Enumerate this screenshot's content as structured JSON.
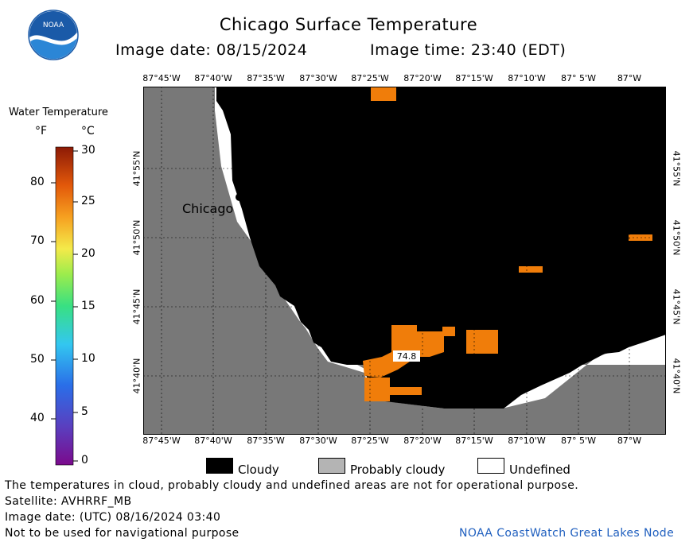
{
  "header": {
    "title": "Chicago Surface Temperature",
    "image_date": "Image date: 08/15/2024",
    "image_time": "Image time: 23:40 (EDT)"
  },
  "logo": {
    "text": "NOAA"
  },
  "colorbar": {
    "title": "Water Temperature",
    "unit_f": "°F",
    "unit_c": "°C",
    "f_ticks": [
      "80",
      "70",
      "60",
      "50",
      "40"
    ],
    "c_ticks": [
      "30",
      "25",
      "20",
      "15",
      "10",
      "5",
      "0"
    ]
  },
  "map": {
    "lon_labels": [
      "87°45'W",
      "87°40'W",
      "87°35'W",
      "87°30'W",
      "87°25'W",
      "87°20'W",
      "87°15'W",
      "87°10'W",
      "87° 5'W",
      "87°W"
    ],
    "lat_labels": [
      "41°55'N",
      "41°50'N",
      "41°45'N",
      "41°40'N"
    ],
    "city_label": "Chicago",
    "temp_reading": "74.8",
    "colors": {
      "land": "#787878",
      "cloudy": "#000000",
      "probably_cloudy": "#b4b4b4",
      "undefined": "#ffffff",
      "warm_water": "#f07d0a"
    }
  },
  "legend": {
    "cloudy": "Cloudy",
    "probably_cloudy": "Probably cloudy",
    "undefined": "Undefined"
  },
  "footer": {
    "disclaimer": "The temperatures in cloud, probably cloudy and undefined areas are not for operational purpose.",
    "satellite": "Satellite: AVHRRF_MB",
    "utc_date": "Image date: (UTC) 08/16/2024  03:40",
    "nav_warning": "Not to be used for navigational purpose",
    "node": "NOAA CoastWatch Great Lakes Node"
  }
}
